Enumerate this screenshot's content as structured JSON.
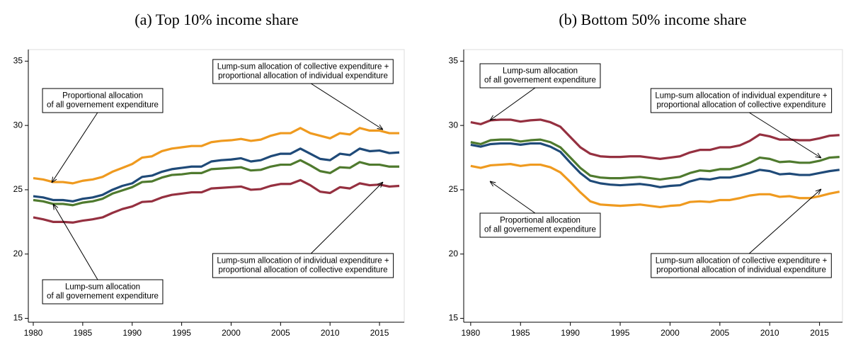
{
  "chart_data": [
    {
      "type": "line",
      "title": "(a) Top 10% income share",
      "x": [
        1980,
        1981,
        1982,
        1983,
        1984,
        1985,
        1986,
        1987,
        1988,
        1989,
        1990,
        1991,
        1992,
        1993,
        1994,
        1995,
        1996,
        1997,
        1998,
        1999,
        2000,
        2001,
        2002,
        2003,
        2004,
        2005,
        2006,
        2007,
        2008,
        2009,
        2010,
        2011,
        2012,
        2013,
        2014,
        2015,
        2016,
        2017
      ],
      "xlim": [
        1979.5,
        2017.5
      ],
      "ylim": [
        14.7,
        35.9
      ],
      "xticks": [
        1980,
        1985,
        1990,
        1995,
        2000,
        2005,
        2010,
        2015
      ],
      "yticks": [
        15,
        20,
        25,
        30,
        35
      ],
      "series": [
        {
          "color": "#ef9a1f",
          "values": [
            25.9,
            25.8,
            25.6,
            25.6,
            25.5,
            25.7,
            25.8,
            26.0,
            26.4,
            26.7,
            27.0,
            27.5,
            27.6,
            28.0,
            28.2,
            28.3,
            28.4,
            28.4,
            28.7,
            28.8,
            28.85,
            28.95,
            28.8,
            28.9,
            29.2,
            29.4,
            29.4,
            29.8,
            29.4,
            29.2,
            29.0,
            29.4,
            29.3,
            29.8,
            29.6,
            29.6,
            29.4,
            29.4
          ]
        },
        {
          "color": "#1f4a78",
          "values": [
            24.5,
            24.4,
            24.2,
            24.2,
            24.1,
            24.3,
            24.4,
            24.6,
            25.0,
            25.3,
            25.5,
            26.0,
            26.1,
            26.4,
            26.6,
            26.7,
            26.8,
            26.8,
            27.2,
            27.3,
            27.35,
            27.45,
            27.2,
            27.3,
            27.6,
            27.8,
            27.8,
            28.2,
            27.8,
            27.4,
            27.3,
            27.8,
            27.7,
            28.2,
            28.0,
            28.05,
            27.85,
            27.9
          ]
        },
        {
          "color": "#4f7a2e",
          "values": [
            24.2,
            24.1,
            23.9,
            23.9,
            23.8,
            24.0,
            24.1,
            24.3,
            24.7,
            24.95,
            25.2,
            25.6,
            25.65,
            25.95,
            26.15,
            26.2,
            26.3,
            26.3,
            26.6,
            26.65,
            26.7,
            26.75,
            26.5,
            26.55,
            26.8,
            26.95,
            26.95,
            27.3,
            26.9,
            26.45,
            26.3,
            26.75,
            26.7,
            27.15,
            26.95,
            26.95,
            26.8,
            26.8
          ]
        },
        {
          "color": "#953040",
          "values": [
            22.85,
            22.7,
            22.5,
            22.5,
            22.45,
            22.6,
            22.7,
            22.85,
            23.2,
            23.5,
            23.7,
            24.05,
            24.1,
            24.4,
            24.6,
            24.7,
            24.8,
            24.8,
            25.1,
            25.15,
            25.2,
            25.25,
            25.0,
            25.05,
            25.3,
            25.45,
            25.45,
            25.75,
            25.35,
            24.85,
            24.75,
            25.2,
            25.1,
            25.5,
            25.35,
            25.4,
            25.25,
            25.3
          ]
        }
      ],
      "annotations": [
        {
          "lines": [
            "Proportional allocation",
            "of all governement expenditure"
          ]
        },
        {
          "lines": [
            "Lump-sum allocation of collective expenditure +",
            "proportional allocation of individual expenditure"
          ]
        },
        {
          "lines": [
            "Lump-sum allocation of individual expenditure +",
            "proportional allocation of collective expenditure"
          ]
        },
        {
          "lines": [
            "Lump-sum allocation",
            "of all governement expenditure"
          ]
        }
      ]
    },
    {
      "type": "line",
      "title": "(b) Bottom 50% income share",
      "x": [
        1980,
        1981,
        1982,
        1983,
        1984,
        1985,
        1986,
        1987,
        1988,
        1989,
        1990,
        1991,
        1992,
        1993,
        1994,
        1995,
        1996,
        1997,
        1998,
        1999,
        2000,
        2001,
        2002,
        2003,
        2004,
        2005,
        2006,
        2007,
        2008,
        2009,
        2010,
        2011,
        2012,
        2013,
        2014,
        2015,
        2016,
        2017
      ],
      "xlim": [
        1979.3,
        2017.3
      ],
      "ylim": [
        14.7,
        35.9
      ],
      "xticks": [
        1980,
        1985,
        1990,
        1995,
        2000,
        2005,
        2010,
        2015
      ],
      "yticks": [
        15,
        20,
        25,
        30,
        35
      ],
      "series": [
        {
          "color": "#953040",
          "values": [
            30.25,
            30.1,
            30.4,
            30.45,
            30.45,
            30.3,
            30.4,
            30.45,
            30.25,
            29.9,
            29.1,
            28.3,
            27.8,
            27.6,
            27.55,
            27.55,
            27.6,
            27.6,
            27.5,
            27.4,
            27.5,
            27.6,
            27.9,
            28.1,
            28.1,
            28.3,
            28.3,
            28.45,
            28.8,
            29.3,
            29.15,
            28.9,
            28.9,
            28.85,
            28.85,
            29.0,
            29.2,
            29.25
          ]
        },
        {
          "color": "#4f7a2e",
          "values": [
            28.7,
            28.55,
            28.85,
            28.9,
            28.9,
            28.75,
            28.85,
            28.9,
            28.7,
            28.3,
            27.5,
            26.7,
            26.1,
            25.95,
            25.9,
            25.9,
            25.95,
            26.0,
            25.9,
            25.8,
            25.9,
            26.0,
            26.3,
            26.5,
            26.45,
            26.6,
            26.6,
            26.8,
            27.1,
            27.5,
            27.4,
            27.15,
            27.2,
            27.1,
            27.1,
            27.25,
            27.5,
            27.55
          ]
        },
        {
          "color": "#1f4a78",
          "values": [
            28.5,
            28.35,
            28.55,
            28.6,
            28.6,
            28.5,
            28.6,
            28.6,
            28.35,
            27.95,
            27.1,
            26.3,
            25.7,
            25.5,
            25.4,
            25.35,
            25.4,
            25.45,
            25.35,
            25.2,
            25.3,
            25.35,
            25.65,
            25.85,
            25.8,
            25.95,
            25.95,
            26.1,
            26.3,
            26.55,
            26.45,
            26.2,
            26.25,
            26.15,
            26.15,
            26.3,
            26.45,
            26.55
          ]
        },
        {
          "color": "#ef9a1f",
          "values": [
            26.85,
            26.7,
            26.9,
            26.95,
            27.0,
            26.85,
            26.95,
            26.95,
            26.75,
            26.35,
            25.6,
            24.8,
            24.1,
            23.85,
            23.8,
            23.75,
            23.8,
            23.85,
            23.75,
            23.65,
            23.75,
            23.8,
            24.05,
            24.1,
            24.05,
            24.2,
            24.2,
            24.35,
            24.55,
            24.65,
            24.65,
            24.45,
            24.5,
            24.35,
            24.35,
            24.5,
            24.7,
            24.85
          ]
        }
      ],
      "annotations": [
        {
          "lines": [
            "Lump-sum allocation",
            "of all governement expenditure"
          ]
        },
        {
          "lines": [
            "Lump-sum allocation of individual expenditure +",
            "proportional allocation of collective expenditure"
          ]
        },
        {
          "lines": [
            "Proportional allocation",
            "of all governement expenditure"
          ]
        },
        {
          "lines": [
            "Lump-sum allocation of collective expenditure +",
            "proportional allocation of individual expenditure"
          ]
        }
      ]
    }
  ]
}
